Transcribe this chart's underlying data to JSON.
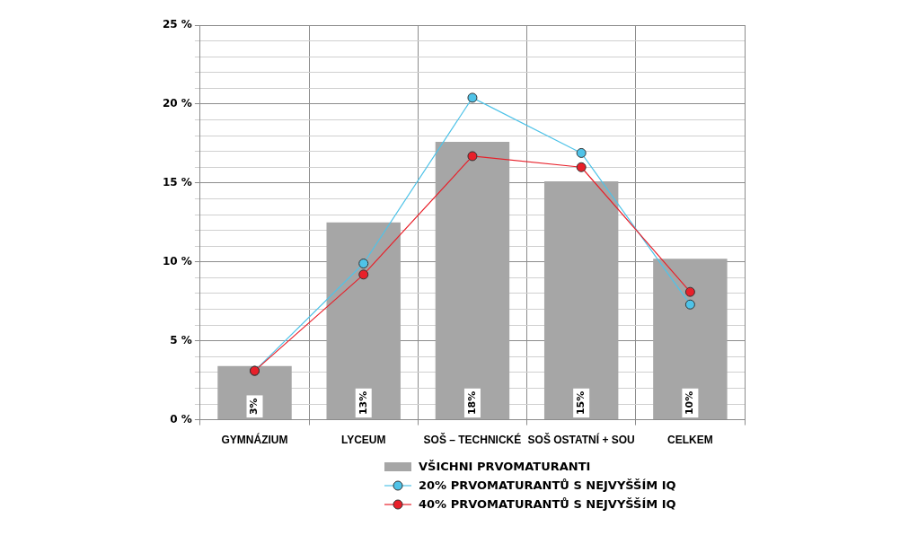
{
  "chart_data": {
    "type": "bar",
    "categories": [
      "GYMNÁZIUM",
      "LYCEUM",
      "SOŠ – TECHNICKÉ",
      "SOŠ OSTATNÍ + SOU",
      "CELKEM"
    ],
    "series": [
      {
        "name": "VŠICHNI PRVOMATURANTI",
        "color": "#a6a6a6",
        "values": [
          3.4,
          12.5,
          17.6,
          15.1,
          10.2
        ],
        "value_labels": [
          "3%",
          "13%",
          "18%",
          "15%",
          "10%"
        ]
      },
      {
        "name": "20% PRVOMATURANTŮ S NEJVYŠŠÍM IQ",
        "type": "line",
        "color": "#4fc3e8",
        "values": [
          3.1,
          9.9,
          20.4,
          16.9,
          7.3
        ]
      },
      {
        "name": "40% PRVOMATURANTŮ S NEJVYŠŠÍM IQ",
        "type": "line",
        "color": "#e8202a",
        "values": [
          3.1,
          9.2,
          16.7,
          16.0,
          8.1
        ]
      }
    ],
    "ylim": [
      0,
      25
    ],
    "yticks": [
      {
        "value": 0,
        "label": "0 %"
      },
      {
        "value": 1,
        "label": null
      },
      {
        "value": 2,
        "label": null
      },
      {
        "value": 3,
        "label": null
      },
      {
        "value": 4,
        "label": null
      },
      {
        "value": 5,
        "label": "5 %"
      },
      {
        "value": 6,
        "label": null
      },
      {
        "value": 7,
        "label": null
      },
      {
        "value": 8,
        "label": null
      },
      {
        "value": 9,
        "label": null
      },
      {
        "value": 10,
        "label": "10 %"
      },
      {
        "value": 11,
        "label": null
      },
      {
        "value": 12,
        "label": null
      },
      {
        "value": 13,
        "label": null
      },
      {
        "value": 14,
        "label": null
      },
      {
        "value": 15,
        "label": "15 %"
      },
      {
        "value": 16,
        "label": null
      },
      {
        "value": 17,
        "label": null
      },
      {
        "value": 18,
        "label": null
      },
      {
        "value": 19,
        "label": null
      },
      {
        "value": 20,
        "label": "20 %"
      },
      {
        "value": 21,
        "label": null
      },
      {
        "value": 22,
        "label": null
      },
      {
        "value": 23,
        "label": null
      },
      {
        "value": 24,
        "label": null
      },
      {
        "value": 25,
        "label": "25 %"
      }
    ],
    "grid": true,
    "legend": "bottom",
    "marker": "circle",
    "line_style": "solid"
  }
}
